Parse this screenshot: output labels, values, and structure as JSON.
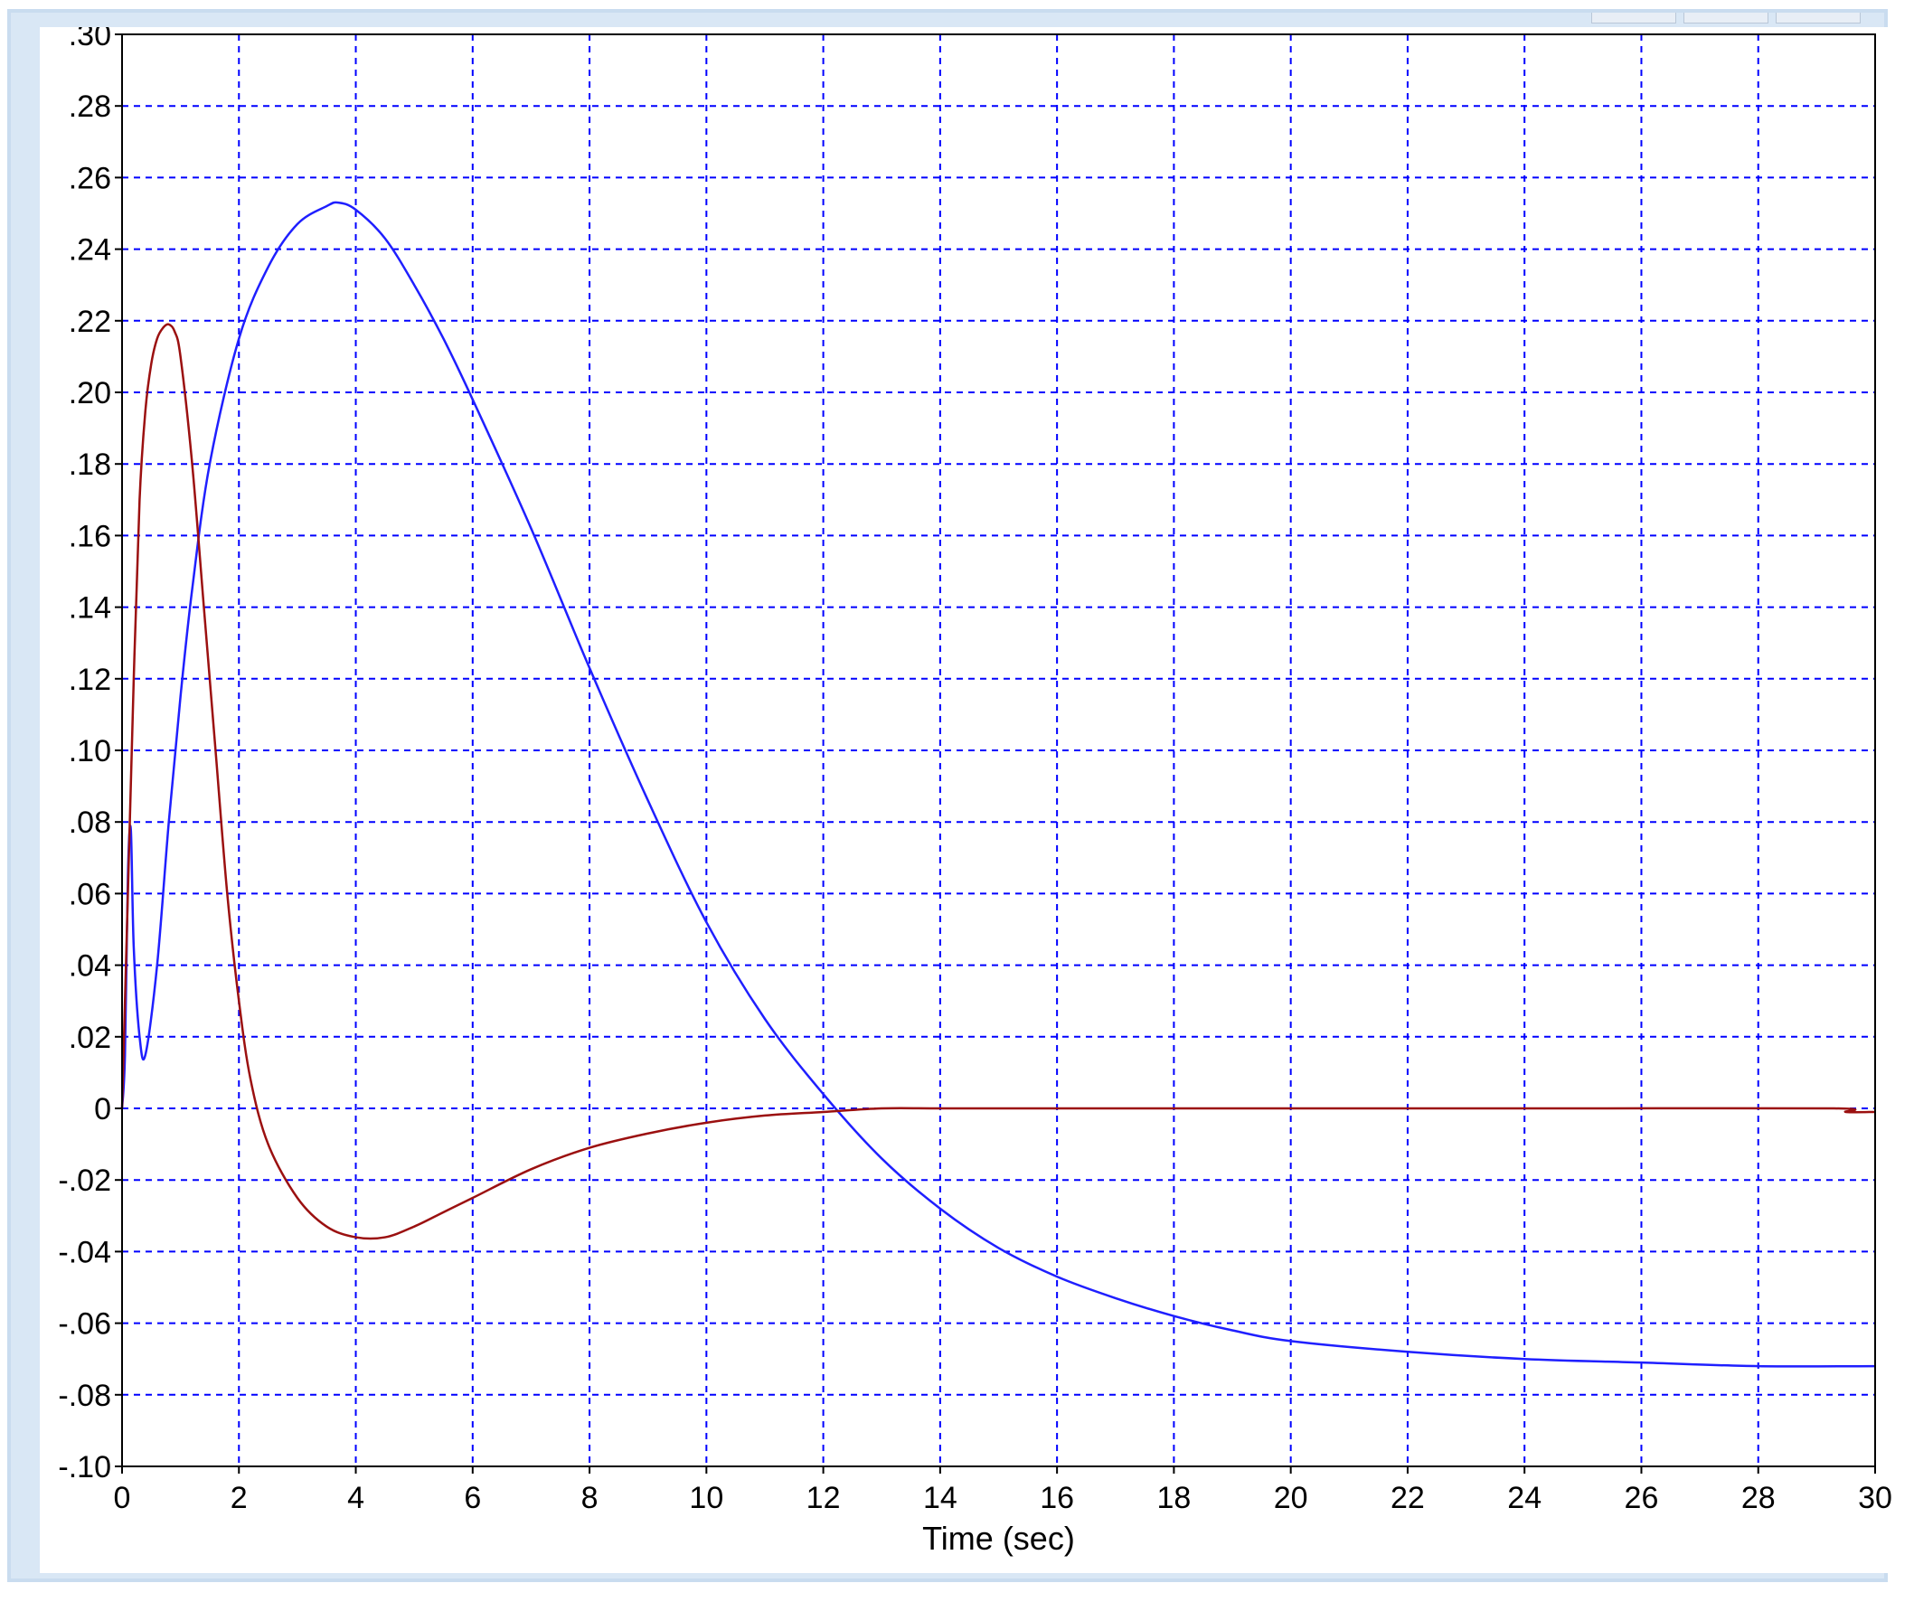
{
  "window": {
    "controls": [
      "minimize",
      "maximize",
      "close"
    ]
  },
  "colors": {
    "frame": "#d9e7f5",
    "grid": "#0000ff",
    "axis": "#000000",
    "series_blue": "#1f1fff",
    "series_red": "#9b1010"
  },
  "chart_data": {
    "type": "line",
    "title": "",
    "xlabel": "Time (sec)",
    "ylabel": "",
    "xlim": [
      0,
      30
    ],
    "ylim": [
      -0.1,
      0.3
    ],
    "grid": true,
    "legend": "none",
    "x_ticks": [
      0,
      2,
      4,
      6,
      8,
      10,
      12,
      14,
      16,
      18,
      20,
      22,
      24,
      26,
      28,
      30
    ],
    "x_tick_labels": [
      "0",
      "2",
      "4",
      "6",
      "8",
      "10",
      "12",
      "14",
      "16",
      "18",
      "20",
      "22",
      "24",
      "26",
      "28",
      "30"
    ],
    "y_ticks": [
      0.3,
      0.28,
      0.26,
      0.24,
      0.22,
      0.2,
      0.18,
      0.16,
      0.14,
      0.12,
      0.1,
      0.08,
      0.06,
      0.04,
      0.02,
      0,
      -0.02,
      -0.04,
      -0.06,
      -0.08,
      -0.1
    ],
    "y_tick_labels": [
      ".30",
      ".28",
      ".26",
      ".24",
      ".22",
      ".20",
      ".18",
      ".16",
      ".14",
      ".12",
      ".10",
      ".08",
      ".06",
      ".04",
      ".02",
      "0",
      "-.02",
      "-.04",
      "-.06",
      "-.08",
      "-.10"
    ],
    "series": [
      {
        "color": "#1f1fff",
        "x": [
          0,
          0.05,
          0.1,
          0.15,
          0.2,
          0.3,
          0.4,
          0.6,
          0.8,
          1.0,
          1.2,
          1.5,
          2.0,
          2.5,
          3.0,
          3.5,
          3.7,
          4.0,
          4.5,
          5.0,
          5.5,
          6.0,
          7.0,
          8.0,
          9.0,
          10.0,
          11.0,
          12.0,
          13.0,
          14.0,
          15.0,
          16.0,
          17.0,
          18.0,
          19.0,
          20.0,
          22.0,
          24.0,
          26.0,
          28.0,
          30.0
        ],
        "y": [
          0.0,
          0.015,
          0.065,
          0.078,
          0.045,
          0.02,
          0.015,
          0.04,
          0.08,
          0.115,
          0.145,
          0.18,
          0.215,
          0.235,
          0.247,
          0.252,
          0.253,
          0.251,
          0.243,
          0.23,
          0.215,
          0.198,
          0.162,
          0.123,
          0.086,
          0.052,
          0.025,
          0.004,
          -0.014,
          -0.028,
          -0.039,
          -0.047,
          -0.053,
          -0.058,
          -0.062,
          -0.065,
          -0.068,
          -0.07,
          -0.071,
          -0.072,
          -0.072
        ]
      },
      {
        "color": "#9b1010",
        "x": [
          0,
          0.1,
          0.2,
          0.3,
          0.4,
          0.5,
          0.6,
          0.7,
          0.8,
          0.9,
          1.0,
          1.2,
          1.4,
          1.6,
          1.8,
          2.0,
          2.2,
          2.5,
          3.0,
          3.5,
          4.0,
          4.5,
          5.0,
          5.5,
          6.0,
          7.0,
          8.0,
          9.0,
          10.0,
          11.0,
          12.0,
          13.0,
          14.0,
          16.0,
          20.0,
          25.0,
          29.3,
          29.5,
          30.0
        ],
        "y": [
          0.0,
          0.06,
          0.12,
          0.17,
          0.195,
          0.208,
          0.215,
          0.218,
          0.219,
          0.217,
          0.21,
          0.18,
          0.14,
          0.1,
          0.06,
          0.03,
          0.008,
          -0.01,
          -0.025,
          -0.033,
          -0.036,
          -0.036,
          -0.033,
          -0.029,
          -0.025,
          -0.017,
          -0.011,
          -0.007,
          -0.004,
          -0.002,
          -0.001,
          0.0,
          0.0,
          0.0,
          0.0,
          0.0,
          0.0,
          -0.001,
          -0.001
        ]
      }
    ]
  }
}
